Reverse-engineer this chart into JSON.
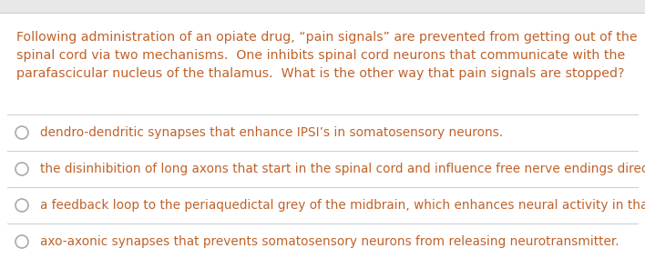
{
  "background_color": "#ffffff",
  "top_bar_color": "#e8e8e8",
  "separator_color": "#cccccc",
  "question_color": "#c0622a",
  "answer_color": "#c0622a",
  "circle_color": "#aaaaaa",
  "question_text_lines": [
    "Following administration of an opiate drug, “pain signals” are prevented from getting out of the",
    "spinal cord via two mechanisms.  One inhibits spinal cord neurons that communicate with the",
    "parafascicular nucleus of the thalamus.  What is the other way that pain signals are stopped?"
  ],
  "answers": [
    "dendro-dendritic synapses that enhance IPSI’s in somatosensory neurons.",
    "the disinhibition of long axons that start in the spinal cord and influence free nerve endings directly.",
    "a feedback loop to the periaquedictal grey of the midbrain, which enhances neural activity in that area.",
    "axo-axonic synapses that prevents somatosensory neurons from releasing neurotransmitter."
  ],
  "question_fontsize": 10.2,
  "answer_fontsize": 9.8,
  "fig_width": 7.08,
  "fig_height": 2.95,
  "dpi": 100
}
